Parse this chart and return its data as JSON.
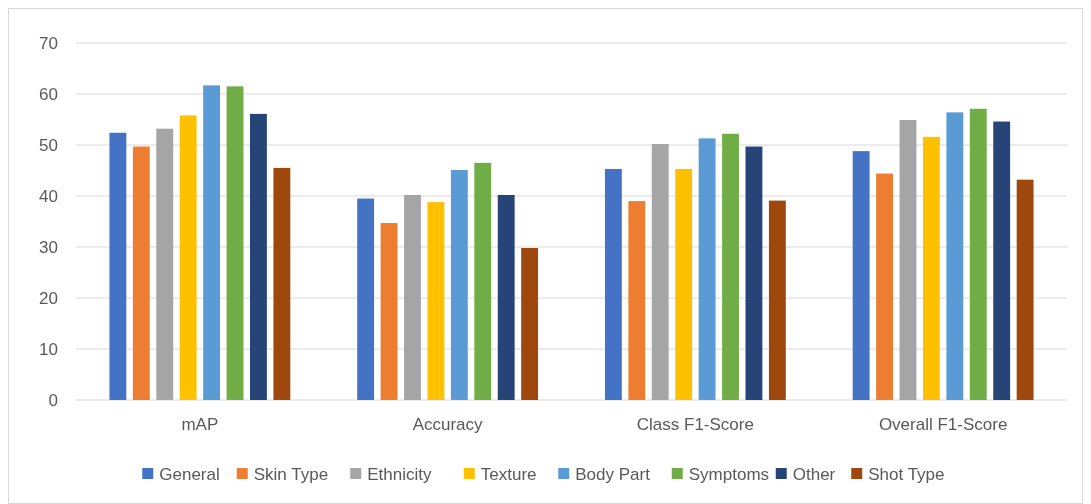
{
  "chart_data": {
    "type": "bar",
    "categories": [
      "mAP",
      "Accuracy",
      "Class F1-Score",
      "Overall F1-Score"
    ],
    "series": [
      {
        "name": "General",
        "color": "#4472c4",
        "values": [
          52.4,
          39.5,
          45.3,
          48.8
        ]
      },
      {
        "name": "Skin Type",
        "color": "#ed7d31",
        "values": [
          49.7,
          34.7,
          39.0,
          44.4
        ]
      },
      {
        "name": "Ethnicity",
        "color": "#a5a5a5",
        "values": [
          53.2,
          40.2,
          50.2,
          54.9
        ]
      },
      {
        "name": "Texture",
        "color": "#ffc000",
        "values": [
          55.8,
          38.8,
          45.3,
          51.6
        ]
      },
      {
        "name": "Body Part",
        "color": "#5b9bd5",
        "values": [
          61.7,
          45.1,
          51.3,
          56.4
        ]
      },
      {
        "name": "Symptoms",
        "color": "#70ad47",
        "values": [
          61.5,
          46.5,
          52.2,
          57.1
        ]
      },
      {
        "name": "Other",
        "color": "#264478",
        "values": [
          56.1,
          40.2,
          49.7,
          54.6
        ]
      },
      {
        "name": "Shot Type",
        "color": "#9e480e",
        "values": [
          45.5,
          29.8,
          39.1,
          43.2
        ]
      }
    ],
    "ylim": [
      0,
      70
    ],
    "yticks": [
      0,
      10,
      20,
      30,
      40,
      50,
      60,
      70
    ],
    "grid": "y",
    "legend": "bottom"
  }
}
